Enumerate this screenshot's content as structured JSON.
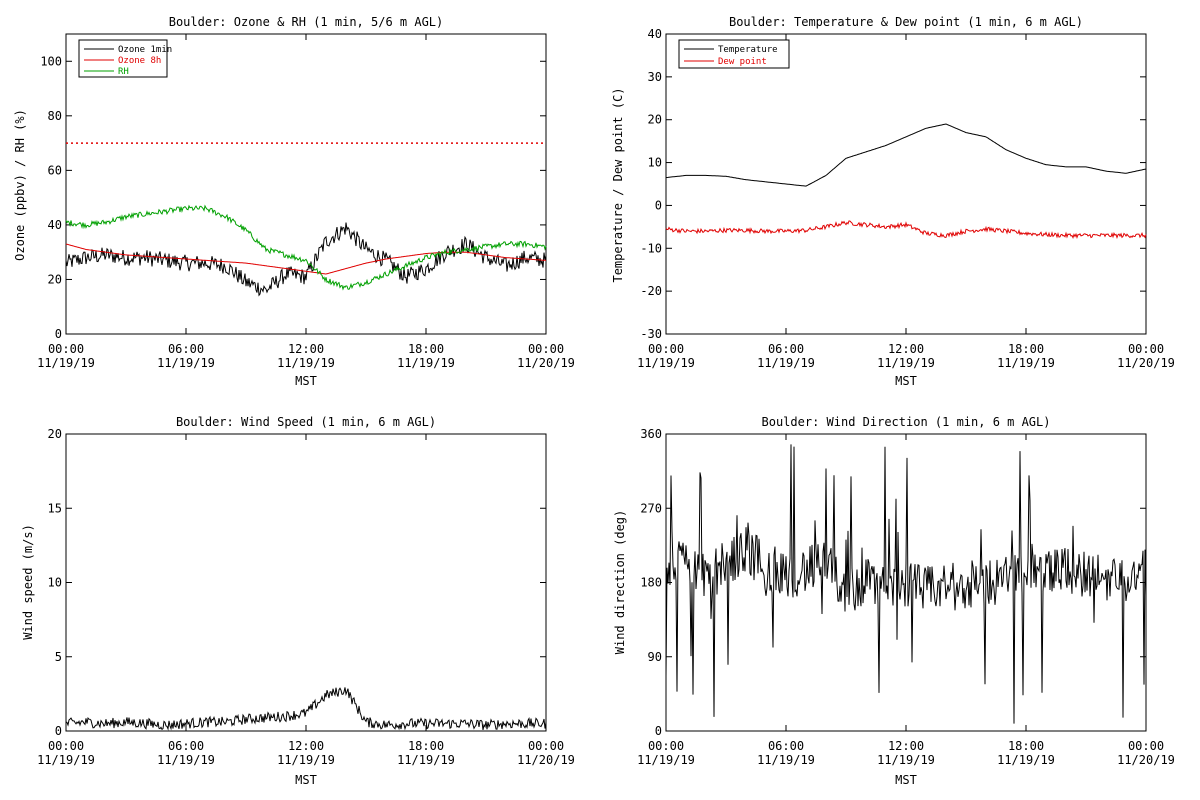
{
  "charts": [
    {
      "id": "ozone",
      "title": "Boulder: Ozone & RH (1 min, 5/6 m AGL)",
      "ylabel": "Ozone (ppbv) / RH (%)",
      "xlabel": "MST",
      "yticks": [
        "0",
        "20",
        "40",
        "60",
        "80",
        "100"
      ],
      "legend": [
        "Ozone 1min",
        "Ozone 8h",
        "RH"
      ]
    },
    {
      "id": "temp",
      "title": "Boulder: Temperature & Dew point (1 min, 6 m AGL)",
      "ylabel": "Temperature / Dew point (C)",
      "xlabel": "MST",
      "yticks": [
        "-30",
        "-20",
        "-10",
        "0",
        "10",
        "20",
        "30",
        "40"
      ],
      "legend": [
        "Temperature",
        "Dew point"
      ]
    },
    {
      "id": "wspd",
      "title": "Boulder: Wind Speed (1 min, 6 m AGL)",
      "ylabel": "Wind speed (m/s)",
      "xlabel": "MST",
      "yticks": [
        "0",
        "5",
        "10",
        "15",
        "20"
      ],
      "legend": []
    },
    {
      "id": "wdir",
      "title": "Boulder: Wind Direction (1 min, 6 m AGL)",
      "ylabel": "Wind direction (deg)",
      "xlabel": "MST",
      "yticks": [
        "0",
        "90",
        "180",
        "270",
        "360"
      ],
      "legend": []
    }
  ],
  "x_ticks": [
    {
      "time": "00:00",
      "date": "11/19/19"
    },
    {
      "time": "06:00",
      "date": "11/19/19"
    },
    {
      "time": "12:00",
      "date": "11/19/19"
    },
    {
      "time": "18:00",
      "date": "11/19/19"
    },
    {
      "time": "00:00",
      "date": "11/20/19"
    }
  ],
  "colors": {
    "ozone_1min": "#000000",
    "ozone_8h": "#e00000",
    "rh": "#00a000",
    "temperature": "#000000",
    "dew_point": "#e00000",
    "axis": "#000000"
  },
  "chart_data": [
    {
      "type": "line",
      "title": "Boulder: Ozone & RH (1 min, 5/6 m AGL)",
      "xlabel": "MST",
      "ylabel": "Ozone (ppbv) / RH (%)",
      "xlim": [
        "11/19/19 00:00",
        "11/20/19 00:00"
      ],
      "ylim": [
        0,
        110
      ],
      "legend_position": "top-left",
      "reference_line": {
        "y": 70,
        "style": "dotted",
        "color": "#e00000"
      },
      "x": [
        "00:00",
        "01:00",
        "02:00",
        "03:00",
        "04:00",
        "05:00",
        "06:00",
        "07:00",
        "08:00",
        "09:00",
        "10:00",
        "11:00",
        "12:00",
        "13:00",
        "14:00",
        "15:00",
        "16:00",
        "17:00",
        "18:00",
        "19:00",
        "20:00",
        "21:00",
        "22:00",
        "23:00",
        "24:00"
      ],
      "series": [
        {
          "name": "Ozone 1min",
          "values": [
            26,
            28,
            29,
            28,
            28,
            27,
            26,
            26,
            25,
            19,
            16,
            22,
            21,
            34,
            39,
            31,
            27,
            21,
            24,
            30,
            33,
            28,
            25,
            28,
            27
          ]
        },
        {
          "name": "Ozone 8h",
          "values": [
            33,
            31,
            30,
            29,
            28.5,
            28,
            27.5,
            27,
            26.5,
            26,
            25,
            24,
            23,
            22,
            24,
            26,
            27.5,
            28.5,
            29.5,
            30,
            30,
            29,
            28,
            27.5,
            27
          ]
        },
        {
          "name": "RH",
          "values": [
            41,
            40,
            41,
            43,
            44,
            45,
            46,
            46,
            43,
            38,
            31,
            29,
            27,
            20,
            17,
            19,
            22,
            25,
            28,
            30,
            31,
            32,
            33,
            33,
            32
          ]
        }
      ]
    },
    {
      "type": "line",
      "title": "Boulder: Temperature & Dew point (1 min, 6 m AGL)",
      "xlabel": "MST",
      "ylabel": "Temperature / Dew point (C)",
      "xlim": [
        "11/19/19 00:00",
        "11/20/19 00:00"
      ],
      "ylim": [
        -30,
        40
      ],
      "legend_position": "top-left",
      "x": [
        "00:00",
        "01:00",
        "02:00",
        "03:00",
        "04:00",
        "05:00",
        "06:00",
        "07:00",
        "08:00",
        "09:00",
        "10:00",
        "11:00",
        "12:00",
        "13:00",
        "14:00",
        "15:00",
        "16:00",
        "17:00",
        "18:00",
        "19:00",
        "20:00",
        "21:00",
        "22:00",
        "23:00",
        "24:00"
      ],
      "series": [
        {
          "name": "Temperature",
          "values": [
            6.5,
            7,
            7,
            6.8,
            6,
            5.5,
            5,
            4.5,
            7,
            11,
            12.5,
            14,
            16,
            18,
            19,
            17,
            16,
            13,
            11,
            9.5,
            9,
            9,
            8,
            7.5,
            8.5
          ]
        },
        {
          "name": "Dew point",
          "values": [
            -5.5,
            -6,
            -6,
            -5.8,
            -5.8,
            -6,
            -6,
            -5.8,
            -5,
            -4,
            -4.5,
            -5,
            -4.5,
            -6.5,
            -7,
            -6,
            -5.5,
            -6,
            -6.5,
            -6.8,
            -7,
            -7,
            -7,
            -7,
            -7
          ]
        }
      ]
    },
    {
      "type": "line",
      "title": "Boulder: Wind Speed (1 min, 6 m AGL)",
      "xlabel": "MST",
      "ylabel": "Wind speed (m/s)",
      "xlim": [
        "11/19/19 00:00",
        "11/20/19 00:00"
      ],
      "ylim": [
        0,
        20
      ],
      "x": [
        "00:00",
        "01:00",
        "02:00",
        "03:00",
        "04:00",
        "05:00",
        "06:00",
        "07:00",
        "08:00",
        "09:00",
        "10:00",
        "11:00",
        "12:00",
        "13:00",
        "14:00",
        "15:00",
        "16:00",
        "17:00",
        "18:00",
        "19:00",
        "20:00",
        "21:00",
        "22:00",
        "23:00",
        "24:00"
      ],
      "series": [
        {
          "values": [
            0.5,
            0.6,
            0.5,
            0.6,
            0.5,
            0.4,
            0.5,
            0.6,
            0.6,
            0.8,
            0.9,
            1.0,
            1.2,
            2.4,
            2.8,
            0.6,
            0.4,
            0.5,
            0.5,
            0.5,
            0.5,
            0.4,
            0.5,
            0.5,
            0.5
          ]
        }
      ]
    },
    {
      "type": "line",
      "title": "Boulder: Wind Direction (1 min, 6 m AGL)",
      "xlabel": "MST",
      "ylabel": "Wind direction (deg)",
      "xlim": [
        "11/19/19 00:00",
        "11/20/19 00:00"
      ],
      "ylim": [
        0,
        360
      ],
      "x": [
        "00:00",
        "01:00",
        "02:00",
        "03:00",
        "04:00",
        "05:00",
        "06:00",
        "07:00",
        "08:00",
        "09:00",
        "10:00",
        "11:00",
        "12:00",
        "13:00",
        "14:00",
        "15:00",
        "16:00",
        "17:00",
        "18:00",
        "19:00",
        "20:00",
        "21:00",
        "22:00",
        "23:00",
        "24:00"
      ],
      "series": [
        {
          "values": [
            200,
            210,
            190,
            200,
            220,
            200,
            190,
            195,
            200,
            170,
            180,
            175,
            180,
            170,
            175,
            175,
            180,
            185,
            200,
            190,
            195,
            190,
            185,
            190,
            190
          ]
        }
      ]
    }
  ]
}
